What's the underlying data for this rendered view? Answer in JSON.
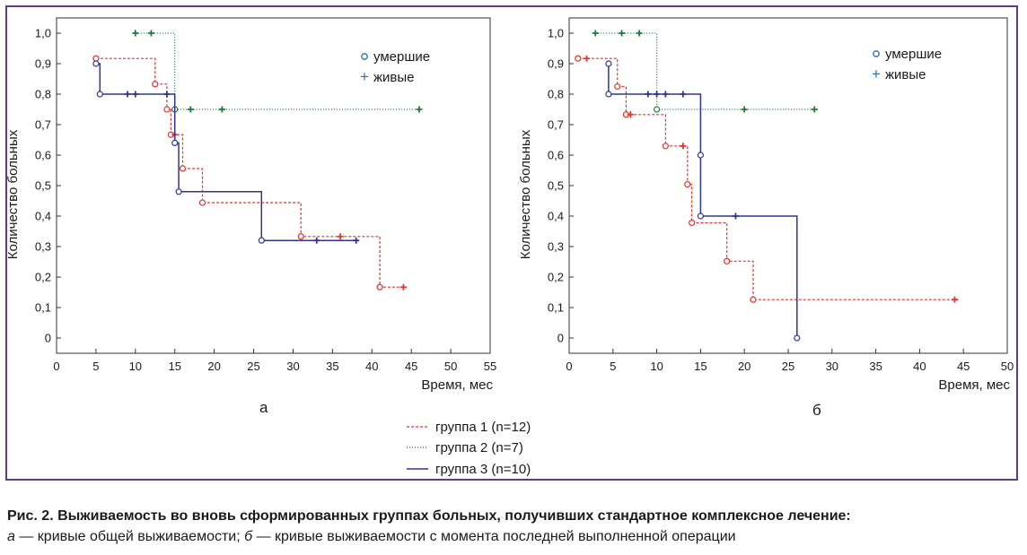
{
  "figure": {
    "caption_title": "Рис. 2. Выживаемость во вновь сформированных группах больных, получивших стандартное комплексное лечение:",
    "caption_a_letter": "а",
    "caption_a_text": " — кривые общей выживаемости; ",
    "caption_b_letter": "б",
    "caption_b_text": " — кривые выживаемости с момента последней выполненной операции"
  },
  "colors": {
    "group1": "#e8302c",
    "group2": "#1e7a3a",
    "group3": "#2e3596",
    "marker_legend_died": "#2e6fb0",
    "marker_legend_alive": "#2e6fb0",
    "frame": "#5b3d8f"
  },
  "legend_markers": [
    "умершие",
    "живые"
  ],
  "legend_groups": [
    "группа 1 (n=12)",
    "группа 2 (n=7)",
    "группа 3 (n=10)"
  ],
  "chart_data": [
    {
      "type": "line",
      "panel_label": "а",
      "xlabel": "Время, мес",
      "ylabel": "Количество больных",
      "xlim": [
        0,
        55
      ],
      "ylim": [
        0,
        1.0
      ],
      "x_ticks": [
        0,
        5,
        10,
        15,
        20,
        25,
        30,
        35,
        40,
        45,
        50,
        55
      ],
      "y_ticks": [
        "0",
        "0,1",
        "0,2",
        "0,3",
        "0,4",
        "0,5",
        "0,6",
        "0,7",
        "0,8",
        "0,9",
        "1,0"
      ],
      "grid": false,
      "series": [
        {
          "name": "группа 1 (n=12)",
          "step": [
            [
              5,
              0.917
            ],
            [
              12.5,
              0.917
            ],
            [
              12.5,
              0.833
            ],
            [
              14,
              0.833
            ],
            [
              14,
              0.75
            ],
            [
              14.5,
              0.75
            ],
            [
              14.5,
              0.667
            ],
            [
              16,
              0.667
            ],
            [
              16,
              0.556
            ],
            [
              18.5,
              0.556
            ],
            [
              18.5,
              0.444
            ],
            [
              31,
              0.444
            ],
            [
              31,
              0.333
            ],
            [
              41,
              0.333
            ],
            [
              41,
              0.167
            ],
            [
              44,
              0.167
            ]
          ],
          "died": [
            [
              5,
              0.917
            ],
            [
              12.5,
              0.833
            ],
            [
              14,
              0.75
            ],
            [
              14.5,
              0.667
            ],
            [
              16,
              0.556
            ],
            [
              18.5,
              0.444
            ],
            [
              31,
              0.333
            ],
            [
              41,
              0.167
            ]
          ],
          "alive": [
            [
              15,
              0.667
            ],
            [
              36,
              0.333
            ],
            [
              44,
              0.167
            ]
          ]
        },
        {
          "name": "группа 2 (n=7)",
          "step": [
            [
              10,
              1.0
            ],
            [
              15,
              1.0
            ],
            [
              15,
              0.75
            ],
            [
              46,
              0.75
            ]
          ],
          "died": [
            [
              15,
              0.75
            ]
          ],
          "alive": [
            [
              10,
              1.0
            ],
            [
              12,
              1.0
            ],
            [
              17,
              0.75
            ],
            [
              21,
              0.75
            ],
            [
              46,
              0.75
            ]
          ]
        },
        {
          "name": "группа 3 (n=10)",
          "step": [
            [
              5,
              0.9
            ],
            [
              5.5,
              0.9
            ],
            [
              5.5,
              0.8
            ],
            [
              15,
              0.8
            ],
            [
              15,
              0.64
            ],
            [
              15.5,
              0.64
            ],
            [
              15.5,
              0.48
            ],
            [
              26,
              0.48
            ],
            [
              26,
              0.32
            ],
            [
              38,
              0.32
            ]
          ],
          "died": [
            [
              5,
              0.9
            ],
            [
              5.5,
              0.8
            ],
            [
              15,
              0.64
            ],
            [
              15.5,
              0.48
            ],
            [
              26,
              0.32
            ]
          ],
          "alive": [
            [
              9,
              0.8
            ],
            [
              10,
              0.8
            ],
            [
              14,
              0.8
            ],
            [
              33,
              0.32
            ],
            [
              38,
              0.32
            ]
          ]
        }
      ]
    },
    {
      "type": "line",
      "panel_label": "б",
      "xlabel": "Время, мес",
      "ylabel": "Количество больных",
      "xlim": [
        0,
        50
      ],
      "ylim": [
        0,
        1.0
      ],
      "x_ticks": [
        0,
        5,
        10,
        15,
        20,
        25,
        30,
        35,
        40,
        45,
        50
      ],
      "y_ticks": [
        "0",
        "0,1",
        "0,2",
        "0,3",
        "0,4",
        "0,5",
        "0,6",
        "0,7",
        "0,8",
        "0,9",
        "1,0"
      ],
      "grid": false,
      "series": [
        {
          "name": "группа 1 (n=12)",
          "step": [
            [
              1,
              0.917
            ],
            [
              5.5,
              0.917
            ],
            [
              5.5,
              0.825
            ],
            [
              6.5,
              0.825
            ],
            [
              6.5,
              0.733
            ],
            [
              11,
              0.733
            ],
            [
              11,
              0.63
            ],
            [
              13.5,
              0.63
            ],
            [
              13.5,
              0.504
            ],
            [
              14,
              0.504
            ],
            [
              14,
              0.378
            ],
            [
              18,
              0.378
            ],
            [
              18,
              0.252
            ],
            [
              21,
              0.252
            ],
            [
              21,
              0.126
            ],
            [
              44,
              0.126
            ]
          ],
          "died": [
            [
              1,
              0.917
            ],
            [
              5.5,
              0.825
            ],
            [
              6.5,
              0.733
            ],
            [
              11,
              0.63
            ],
            [
              13.5,
              0.504
            ],
            [
              14,
              0.378
            ],
            [
              18,
              0.252
            ],
            [
              21,
              0.126
            ]
          ],
          "alive": [
            [
              2,
              0.917
            ],
            [
              7,
              0.733
            ],
            [
              13,
              0.63
            ],
            [
              44,
              0.126
            ]
          ]
        },
        {
          "name": "группа 2 (n=7)",
          "step": [
            [
              3,
              1.0
            ],
            [
              10,
              1.0
            ],
            [
              10,
              0.75
            ],
            [
              28,
              0.75
            ]
          ],
          "died": [
            [
              10,
              0.75
            ]
          ],
          "alive": [
            [
              3,
              1.0
            ],
            [
              6,
              1.0
            ],
            [
              8,
              1.0
            ],
            [
              20,
              0.75
            ],
            [
              28,
              0.75
            ]
          ]
        },
        {
          "name": "группа 3 (n=10)",
          "step": [
            [
              4.5,
              0.9
            ],
            [
              4.5,
              0.8
            ],
            [
              15,
              0.8
            ],
            [
              15,
              0.6
            ],
            [
              15,
              0.4
            ],
            [
              26,
              0.4
            ],
            [
              26,
              0.0
            ]
          ],
          "died": [
            [
              4.5,
              0.9
            ],
            [
              4.5,
              0.8
            ],
            [
              15,
              0.6
            ],
            [
              15,
              0.4
            ],
            [
              26,
              0.0
            ]
          ],
          "alive": [
            [
              9,
              0.8
            ],
            [
              10,
              0.8
            ],
            [
              11,
              0.8
            ],
            [
              13,
              0.8
            ],
            [
              19,
              0.4
            ]
          ]
        }
      ]
    }
  ]
}
